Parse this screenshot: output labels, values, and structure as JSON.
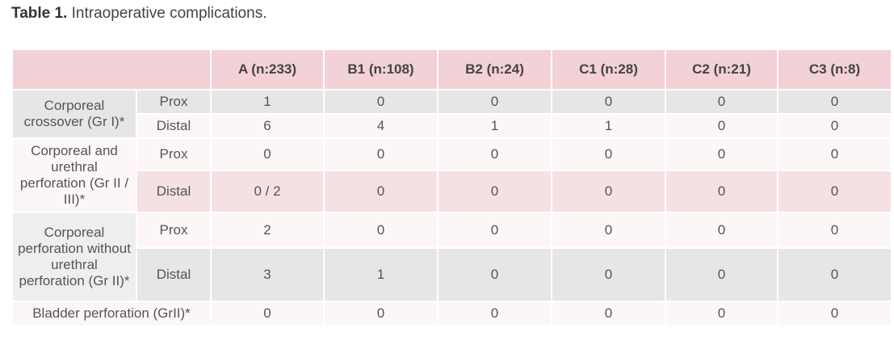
{
  "caption": {
    "label": "Table 1.",
    "text": "Intraoperative complications."
  },
  "table": {
    "header": [
      "A (n:233)",
      "B1 (n:108)",
      "B2 (n:24)",
      "C1 (n:28)",
      "C2 (n:21)",
      "C3 (n:8)"
    ],
    "groups": [
      {
        "label": "Corporeal crossover (Gr I)*",
        "rows": [
          {
            "label": "Prox",
            "cells": [
              1,
              0,
              0,
              0,
              0,
              0
            ]
          },
          {
            "label": "Distal",
            "cells": [
              6,
              4,
              1,
              1,
              0,
              0
            ]
          }
        ]
      },
      {
        "label": "Corporeal and urethral perforation (Gr II / III)*",
        "rows": [
          {
            "label": "Prox",
            "cells": [
              0,
              0,
              0,
              0,
              0,
              0
            ]
          },
          {
            "label": "Distal",
            "cells": [
              "0 / 2",
              0,
              0,
              0,
              0,
              0
            ]
          }
        ]
      },
      {
        "label": "Corporeal perforation without urethral perforation (Gr II)*",
        "rows": [
          {
            "label": "Prox",
            "cells": [
              2,
              0,
              0,
              0,
              0,
              0
            ]
          },
          {
            "label": "Distal",
            "cells": [
              3,
              1,
              0,
              0,
              0,
              0
            ]
          }
        ]
      }
    ],
    "footer": {
      "label": "Bladder perforation (GrII)*",
      "cells": [
        0,
        0,
        0,
        0,
        0,
        0
      ]
    }
  }
}
